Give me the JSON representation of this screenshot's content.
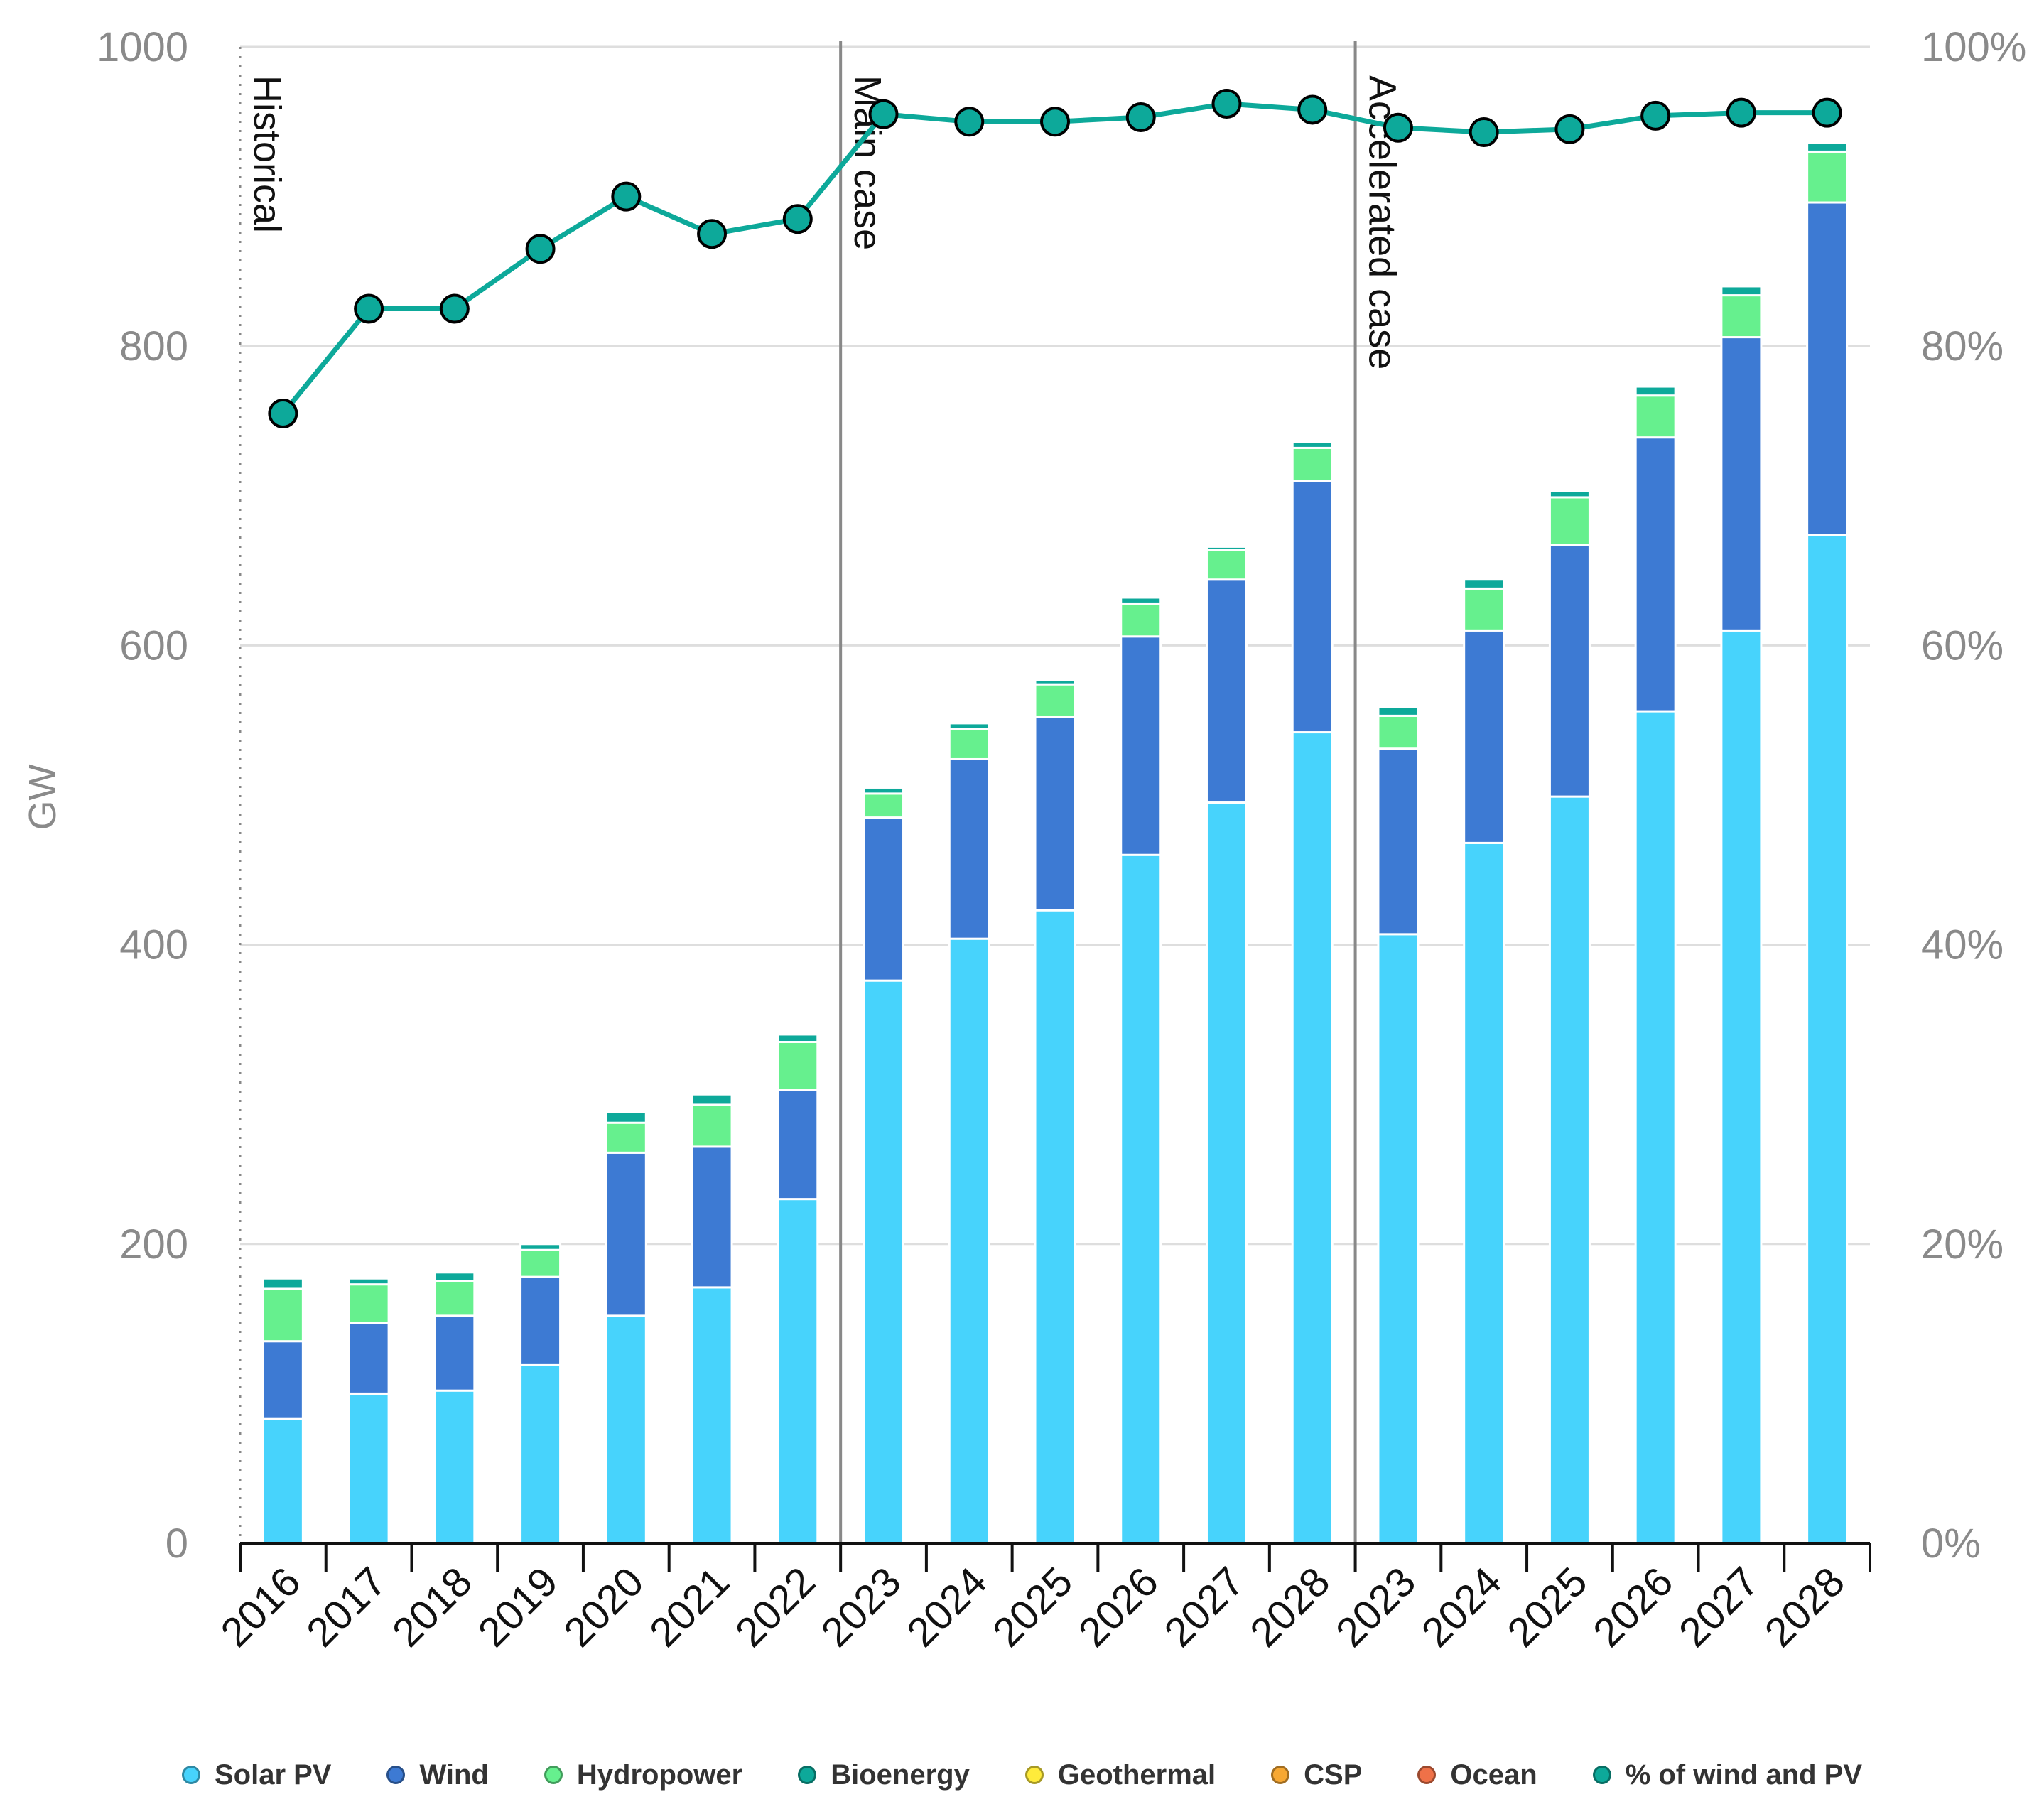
{
  "chart_data": {
    "type": "bar",
    "stacked": true,
    "title": "",
    "ylabel": "GW",
    "ylim": [
      0,
      1000
    ],
    "yticks": [
      "0",
      "200",
      "400",
      "600",
      "800",
      "1000"
    ],
    "y2lim": [
      0,
      100
    ],
    "y2ticks": [
      "0%",
      "20%",
      "40%",
      "60%",
      "80%",
      "100%"
    ],
    "categories": [
      "2016",
      "2017",
      "2018",
      "2019",
      "2020",
      "2021",
      "2022",
      "2023",
      "2024",
      "2025",
      "2026",
      "2027",
      "2028",
      "2023",
      "2024",
      "2025",
      "2026",
      "2027",
      "2028"
    ],
    "sections": [
      {
        "label": "Historical",
        "start": 0
      },
      {
        "label": "Main case",
        "start": 7
      },
      {
        "label": "Accelerated case",
        "start": 13
      }
    ],
    "series": [
      {
        "name": "Solar PV",
        "color": "#47d3fc",
        "values": [
          83,
          100,
          102,
          119,
          152,
          171,
          230,
          376,
          404,
          423,
          460,
          495,
          542,
          407,
          468,
          499,
          556,
          610,
          674
        ]
      },
      {
        "name": "Wind",
        "color": "#3d7ad3",
        "values": [
          52,
          47,
          50,
          59,
          109,
          94,
          73,
          109,
          120,
          129,
          146,
          149,
          168,
          124,
          142,
          168,
          183,
          196,
          222
        ]
      },
      {
        "name": "Hydropower",
        "color": "#66f08e",
        "values": [
          35,
          26,
          23,
          18,
          20,
          28,
          32,
          16,
          20,
          22,
          22,
          20,
          22,
          22,
          28,
          32,
          28,
          28,
          34
        ]
      },
      {
        "name": "Bioenergy",
        "color": "#0da99a",
        "values": [
          7,
          4,
          6,
          4,
          7,
          7,
          5,
          4,
          4,
          3,
          4,
          2,
          4,
          6,
          6,
          4,
          6,
          6,
          6
        ]
      },
      {
        "name": "Geothermal",
        "color": "#ffeb3b",
        "values": [
          0,
          0,
          0,
          0,
          0,
          0,
          0,
          0,
          0,
          0,
          0,
          0,
          0,
          0,
          0,
          0,
          0,
          0,
          0
        ]
      },
      {
        "name": "CSP",
        "color": "#f7a833",
        "values": [
          0,
          0,
          0,
          0,
          0,
          0,
          0,
          0,
          0,
          0,
          0,
          0,
          0,
          0,
          0,
          0,
          0,
          0,
          0
        ]
      },
      {
        "name": "Ocean",
        "color": "#ef7148",
        "values": [
          0,
          0,
          0,
          0,
          0,
          0,
          0,
          0,
          0,
          0,
          0,
          0,
          0,
          0,
          0,
          0,
          0,
          0,
          0
        ]
      }
    ],
    "line": {
      "name": "% of wind and PV",
      "color": "#0da99a",
      "axis": "right",
      "values": [
        75.5,
        82.5,
        82.5,
        86.5,
        90,
        87.5,
        88.5,
        95.5,
        95,
        95,
        95.3,
        96.2,
        95.8,
        94.6,
        94.3,
        94.5,
        95.4,
        95.6,
        95.6
      ]
    },
    "legend": [
      "Solar PV",
      "Wind",
      "Hydropower",
      "Bioenergy",
      "Geothermal",
      "CSP",
      "Ocean",
      "% of wind and PV"
    ],
    "legend_position": "bottom"
  }
}
